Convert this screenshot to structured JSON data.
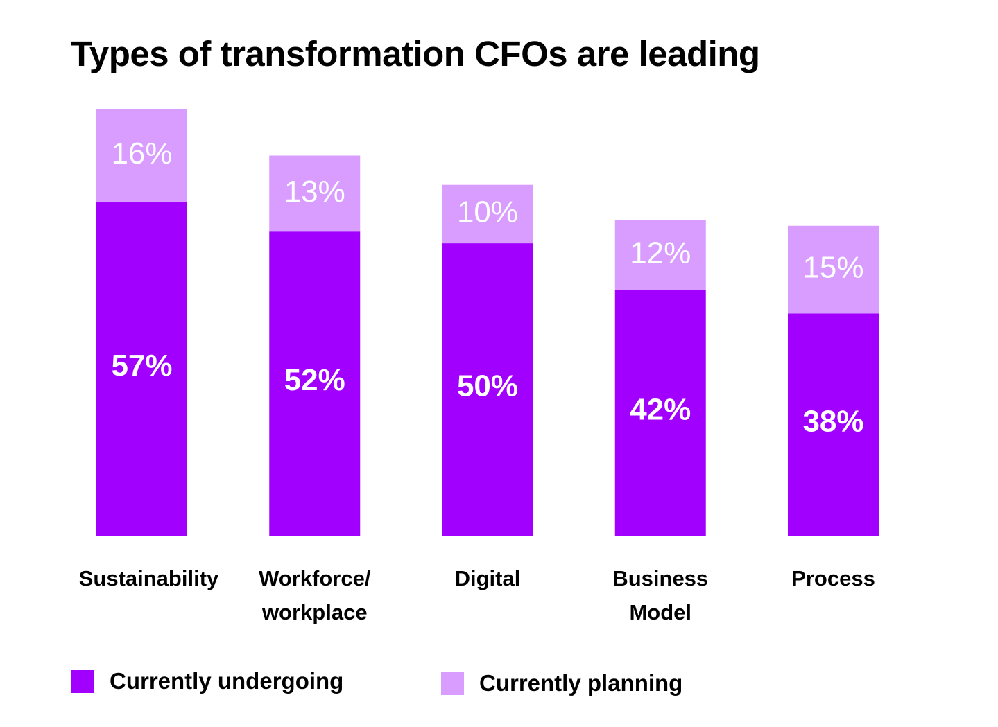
{
  "chart_data": {
    "type": "bar",
    "stacked": true,
    "title": "Types of transformation CFOs are leading",
    "xlabel": "",
    "ylabel": "",
    "categories": [
      "Sustainability",
      "Workforce/ workplace",
      "Digital",
      "Business Model",
      "Process"
    ],
    "category_lines": [
      [
        "Sustainability"
      ],
      [
        "Workforce/",
        "workplace"
      ],
      [
        "Digital"
      ],
      [
        "Business",
        "Model"
      ],
      [
        "Process"
      ]
    ],
    "series": [
      {
        "name": "Currently undergoing",
        "values": [
          57,
          52,
          50,
          42,
          38
        ],
        "color": "#a100ff"
      },
      {
        "name": "Currently planning",
        "values": [
          16,
          13,
          10,
          12,
          15
        ],
        "color": "#d99cff"
      }
    ],
    "value_suffix": "%",
    "ylim": [
      0,
      73
    ],
    "grid": false,
    "axis_ticks_shown": false,
    "legend_position": "bottom-left"
  },
  "colors": {
    "undergoing": "#a100ff",
    "planning": "#d99cff",
    "label_text": "#ffffff",
    "text": "#000000"
  }
}
